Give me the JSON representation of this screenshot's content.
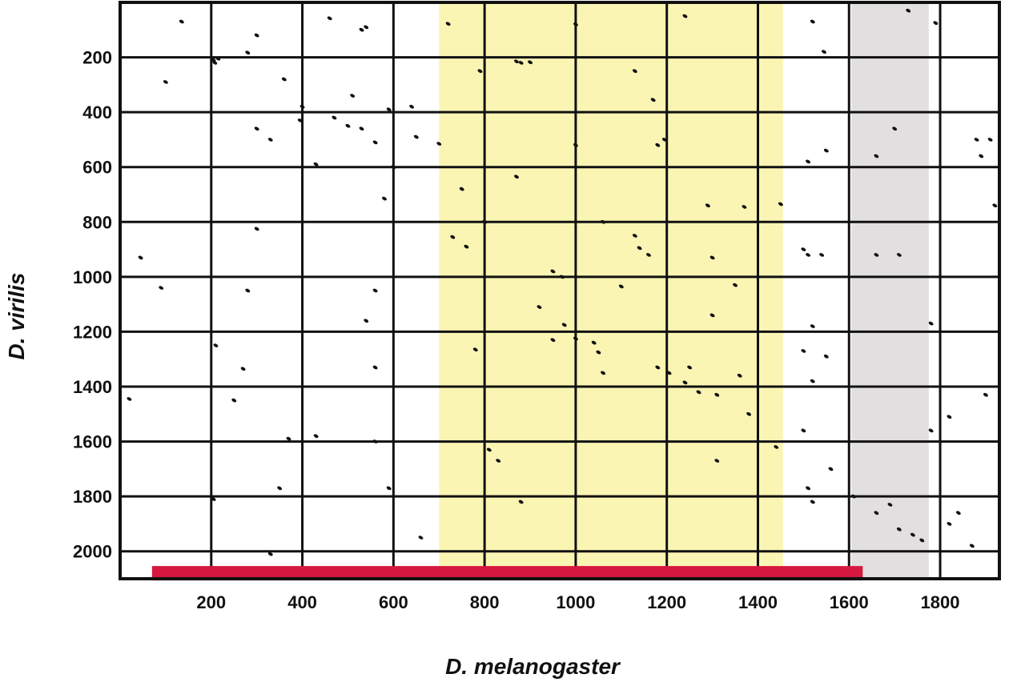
{
  "chart_data": {
    "type": "scatter",
    "xlabel": "D. melanogaster",
    "ylabel": "D. virilis",
    "xlim": [
      0,
      1930
    ],
    "ylim": [
      2100,
      0
    ],
    "grid": true,
    "x_ticks": [
      200,
      400,
      600,
      800,
      1000,
      1200,
      1400,
      1600,
      1800
    ],
    "y_ticks": [
      200,
      400,
      600,
      800,
      1000,
      1200,
      1400,
      1600,
      1800,
      2000
    ],
    "highlight_regions": [
      {
        "x_start": 700,
        "x_end": 1455,
        "color": "#fbf5b4"
      },
      {
        "x_start": 1605,
        "x_end": 1775,
        "color": "#e2dfe0"
      }
    ],
    "bar_segment": {
      "x_start": 70,
      "x_end": 1630,
      "y": 2080,
      "color": "#d6173f"
    },
    "points": [
      [
        135,
        70
      ],
      [
        205,
        210
      ],
      [
        215,
        205
      ],
      [
        208,
        220
      ],
      [
        280,
        183
      ],
      [
        300,
        120
      ],
      [
        100,
        290
      ],
      [
        460,
        58
      ],
      [
        540,
        90
      ],
      [
        530,
        100
      ],
      [
        360,
        280
      ],
      [
        400,
        380
      ],
      [
        510,
        340
      ],
      [
        395,
        430
      ],
      [
        430,
        590
      ],
      [
        470,
        420
      ],
      [
        500,
        450
      ],
      [
        530,
        460
      ],
      [
        560,
        510
      ],
      [
        600,
        600
      ],
      [
        640,
        380
      ],
      [
        650,
        490
      ],
      [
        590,
        390
      ],
      [
        330,
        500
      ],
      [
        300,
        460
      ],
      [
        580,
        715
      ],
      [
        300,
        825
      ],
      [
        720,
        78
      ],
      [
        870,
        215
      ],
      [
        880,
        220
      ],
      [
        900,
        218
      ],
      [
        790,
        250
      ],
      [
        1000,
        80
      ],
      [
        1240,
        50
      ],
      [
        1130,
        250
      ],
      [
        1170,
        355
      ],
      [
        1180,
        520
      ],
      [
        1195,
        500
      ],
      [
        1000,
        520
      ],
      [
        700,
        515
      ],
      [
        870,
        635
      ],
      [
        750,
        680
      ],
      [
        800,
        800
      ],
      [
        1060,
        800
      ],
      [
        1290,
        740
      ],
      [
        1370,
        745
      ],
      [
        1450,
        735
      ],
      [
        1520,
        70
      ],
      [
        1545,
        180
      ],
      [
        1510,
        580
      ],
      [
        1550,
        540
      ],
      [
        1730,
        30
      ],
      [
        1790,
        75
      ],
      [
        1700,
        460
      ],
      [
        1660,
        560
      ],
      [
        1880,
        500
      ],
      [
        1910,
        500
      ],
      [
        1890,
        560
      ],
      [
        1920,
        740
      ],
      [
        45,
        930
      ],
      [
        90,
        1040
      ],
      [
        280,
        1050
      ],
      [
        540,
        1160
      ],
      [
        560,
        1050
      ],
      [
        560,
        1330
      ],
      [
        210,
        1250
      ],
      [
        270,
        1335
      ],
      [
        250,
        1450
      ],
      [
        20,
        1445
      ],
      [
        730,
        855
      ],
      [
        760,
        890
      ],
      [
        950,
        980
      ],
      [
        970,
        1000
      ],
      [
        920,
        1110
      ],
      [
        975,
        1175
      ],
      [
        1000,
        1225
      ],
      [
        950,
        1230
      ],
      [
        1040,
        1240
      ],
      [
        1050,
        1275
      ],
      [
        780,
        1265
      ],
      [
        1100,
        1035
      ],
      [
        1130,
        850
      ],
      [
        1140,
        895
      ],
      [
        1160,
        920
      ],
      [
        1180,
        1330
      ],
      [
        1205,
        1350
      ],
      [
        1240,
        1385
      ],
      [
        1250,
        1330
      ],
      [
        1270,
        1420
      ],
      [
        1310,
        1430
      ],
      [
        1300,
        1140
      ],
      [
        1300,
        930
      ],
      [
        1350,
        1030
      ],
      [
        1360,
        1360
      ],
      [
        1380,
        1500
      ],
      [
        1440,
        1620
      ],
      [
        1310,
        1670
      ],
      [
        1520,
        1180
      ],
      [
        1510,
        920
      ],
      [
        1540,
        920
      ],
      [
        1500,
        900
      ],
      [
        1520,
        1380
      ],
      [
        1500,
        1270
      ],
      [
        1550,
        1290
      ],
      [
        1500,
        1560
      ],
      [
        1560,
        1700
      ],
      [
        1510,
        1770
      ],
      [
        1520,
        1820
      ],
      [
        1610,
        1800
      ],
      [
        1660,
        1860
      ],
      [
        1690,
        1830
      ],
      [
        1710,
        1920
      ],
      [
        1740,
        1940
      ],
      [
        1760,
        1960
      ],
      [
        1840,
        1860
      ],
      [
        1820,
        1900
      ],
      [
        1870,
        1980
      ],
      [
        1660,
        920
      ],
      [
        1710,
        920
      ],
      [
        1780,
        1170
      ],
      [
        1780,
        1560
      ],
      [
        1820,
        1510
      ],
      [
        1900,
        1430
      ],
      [
        370,
        1590
      ],
      [
        430,
        1580
      ],
      [
        560,
        1600
      ],
      [
        590,
        1770
      ],
      [
        350,
        1770
      ],
      [
        205,
        1810
      ],
      [
        330,
        2010
      ],
      [
        660,
        1950
      ],
      [
        810,
        1630
      ],
      [
        830,
        1670
      ],
      [
        880,
        1820
      ],
      [
        1060,
        1350
      ]
    ]
  }
}
